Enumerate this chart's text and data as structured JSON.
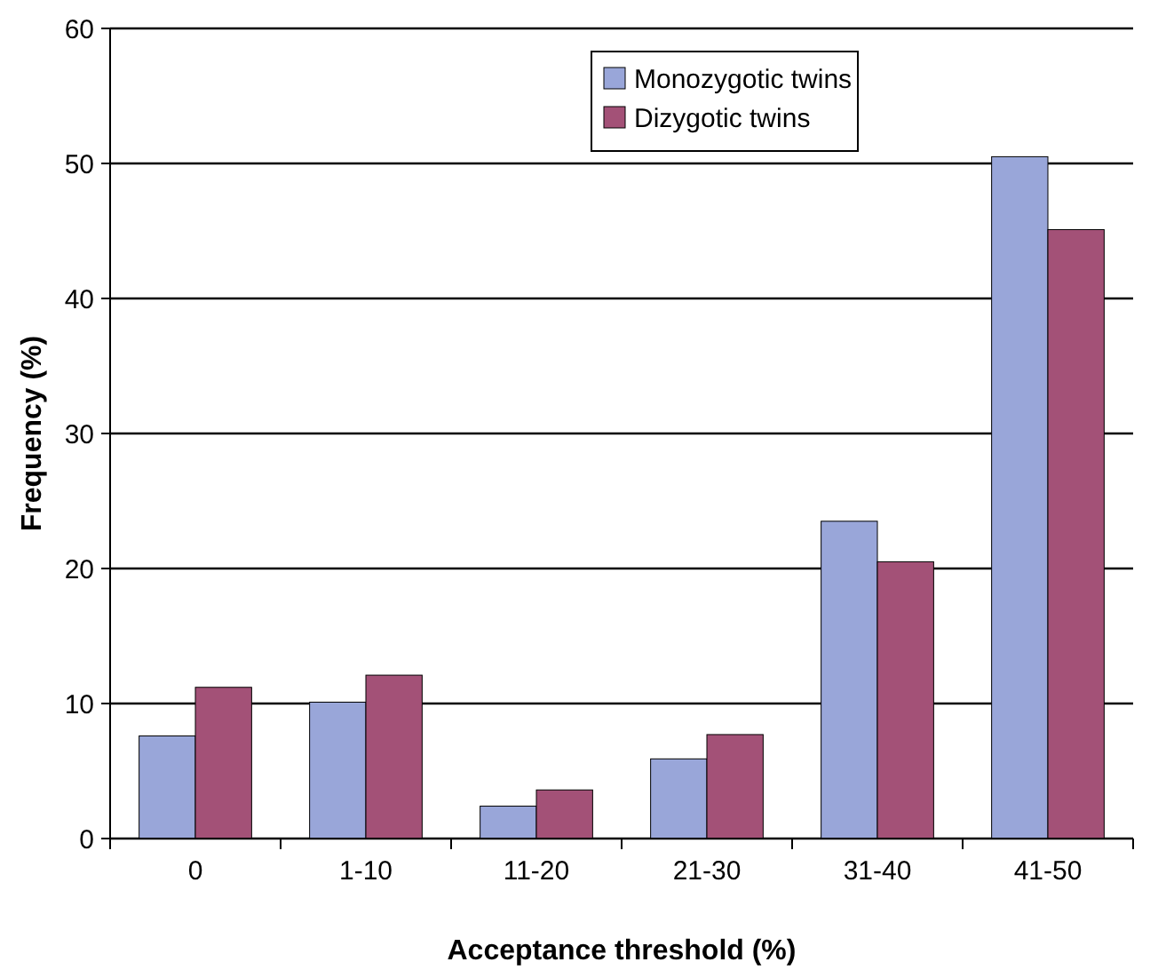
{
  "chart_data": {
    "type": "bar",
    "xlabel": "Acceptance threshold (%)",
    "ylabel": "Frequency (%)",
    "categories": [
      "0",
      "1-10",
      "11-20",
      "21-30",
      "31-40",
      "41-50"
    ],
    "series": [
      {
        "name": "Monozygotic twins",
        "color": "#99a6d9",
        "values": [
          7.6,
          10.1,
          2.4,
          5.9,
          23.5,
          50.5
        ]
      },
      {
        "name": "Dizygotic twins",
        "color": "#a35177",
        "values": [
          11.2,
          12.1,
          3.6,
          7.7,
          20.5,
          45.1
        ]
      }
    ],
    "ylim": [
      0,
      60
    ],
    "yticks": [
      0,
      10,
      20,
      30,
      40,
      50,
      60
    ],
    "grid": "y",
    "legend": "top right"
  }
}
